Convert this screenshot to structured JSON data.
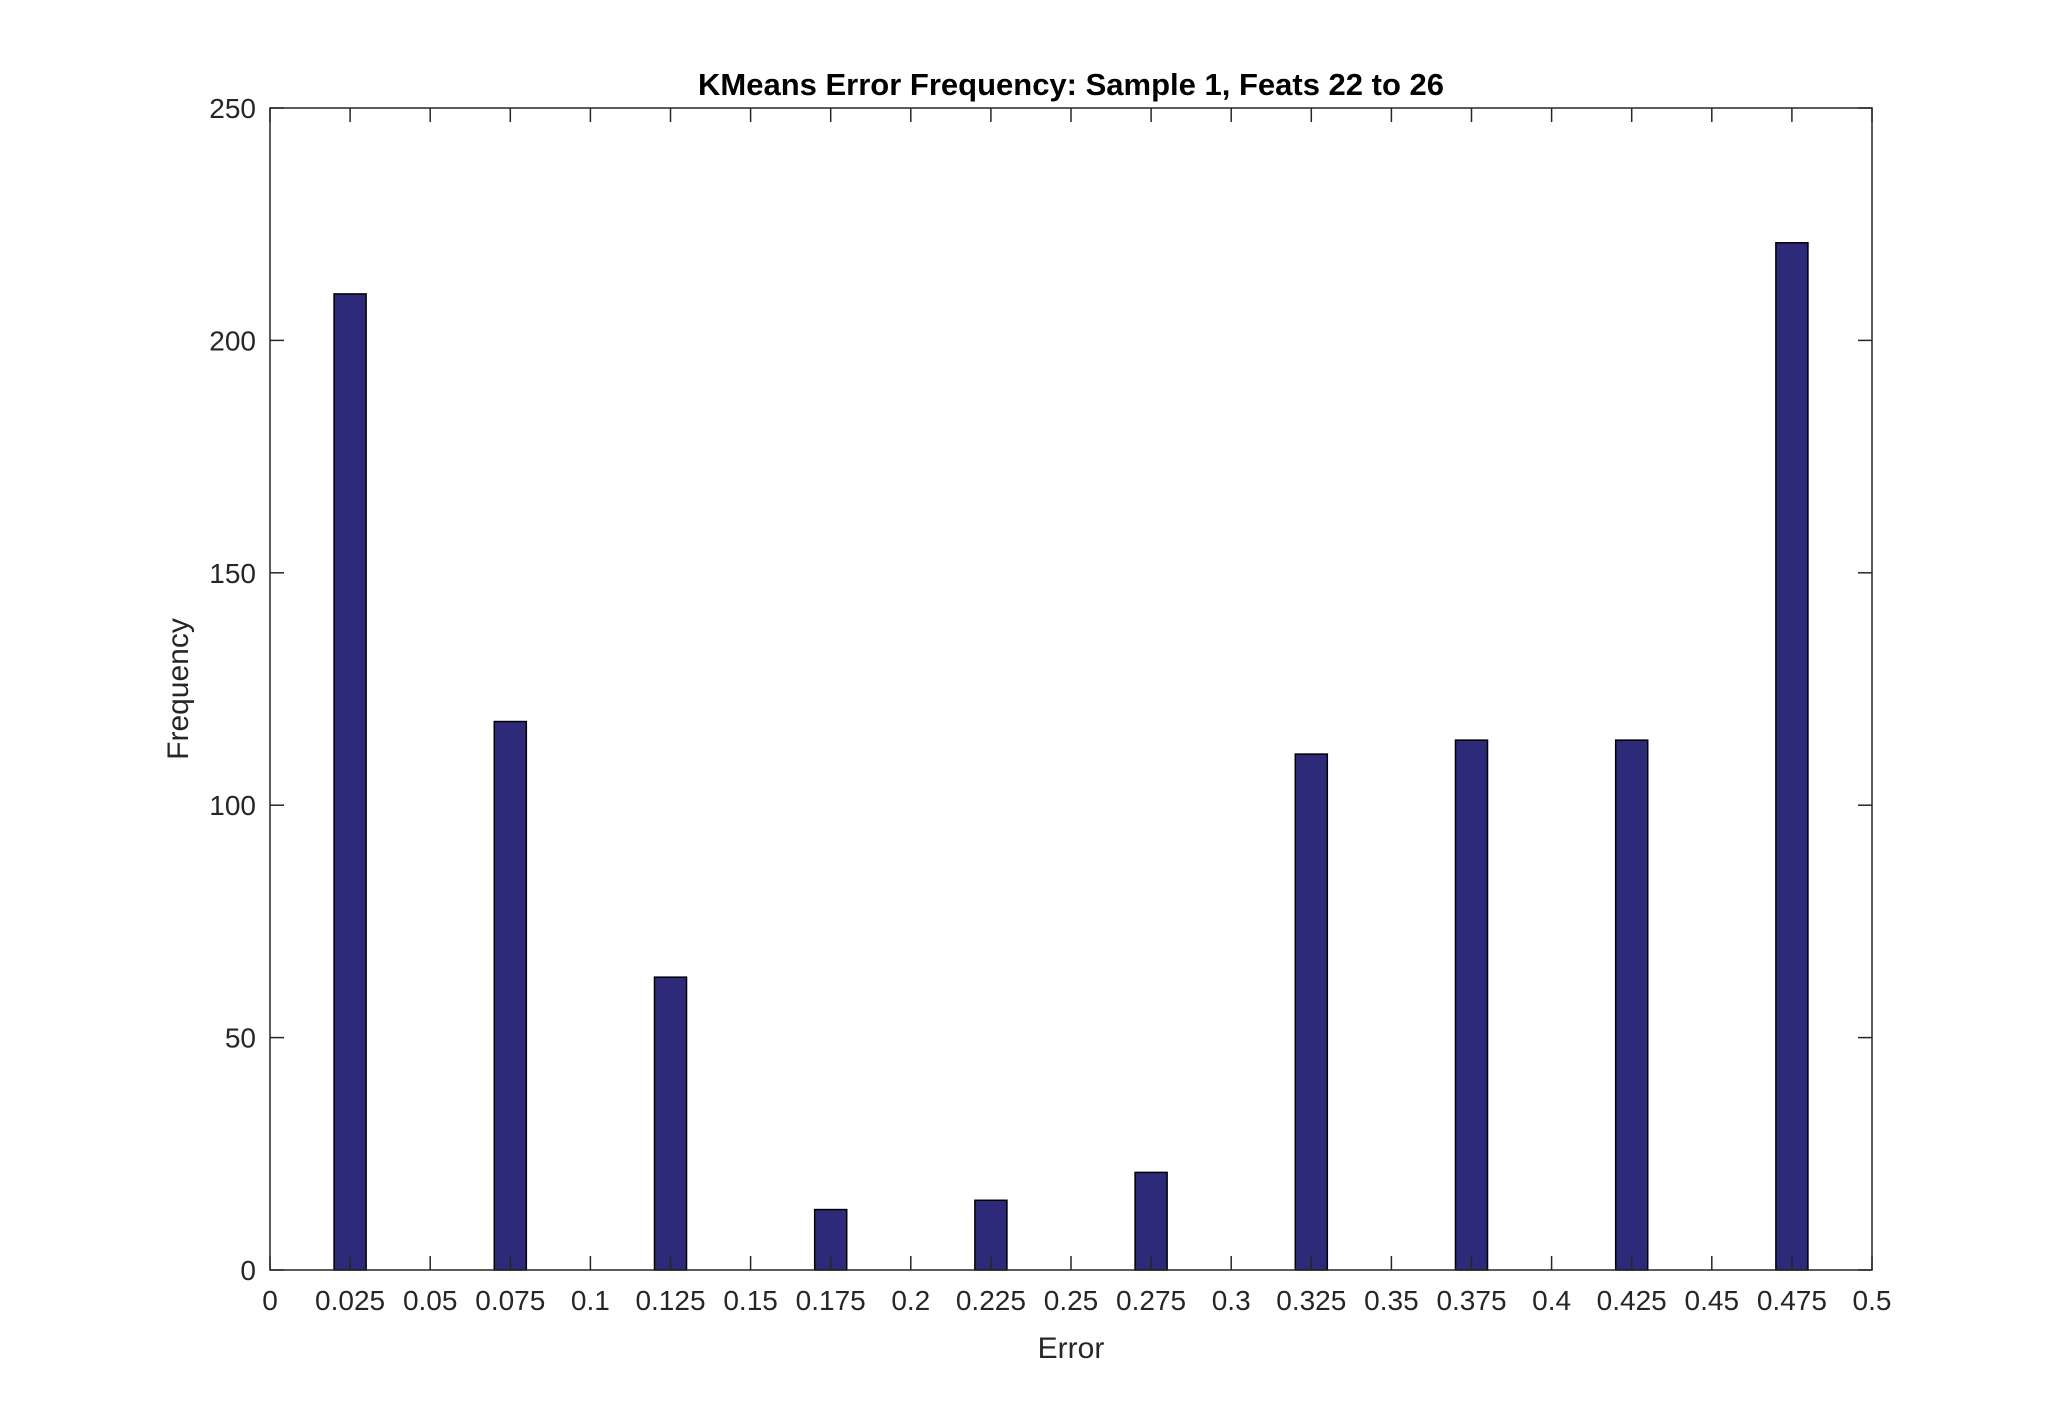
{
  "chart_data": {
    "type": "bar",
    "title": "KMeans Error Frequency: Sample 1, Feats 22 to 26",
    "xlabel": "Error",
    "ylabel": "Frequency",
    "xlim": [
      0,
      0.5
    ],
    "ylim": [
      0,
      250
    ],
    "x_ticks": [
      "0",
      "0.025",
      "0.05",
      "0.075",
      "0.1",
      "0.125",
      "0.15",
      "0.175",
      "0.2",
      "0.225",
      "0.25",
      "0.275",
      "0.3",
      "0.325",
      "0.35",
      "0.375",
      "0.4",
      "0.425",
      "0.45",
      "0.475",
      "0.5"
    ],
    "y_ticks": [
      "0",
      "50",
      "100",
      "150",
      "200",
      "250"
    ],
    "grid": false,
    "legend": "none",
    "bar_color": "#2e2a7a",
    "bar_edge_color": "#000000",
    "x": [
      0.025,
      0.075,
      0.125,
      0.175,
      0.225,
      0.275,
      0.325,
      0.375,
      0.425,
      0.475
    ],
    "values": [
      210,
      118,
      63,
      13,
      15,
      21,
      111,
      114,
      114,
      221
    ]
  }
}
